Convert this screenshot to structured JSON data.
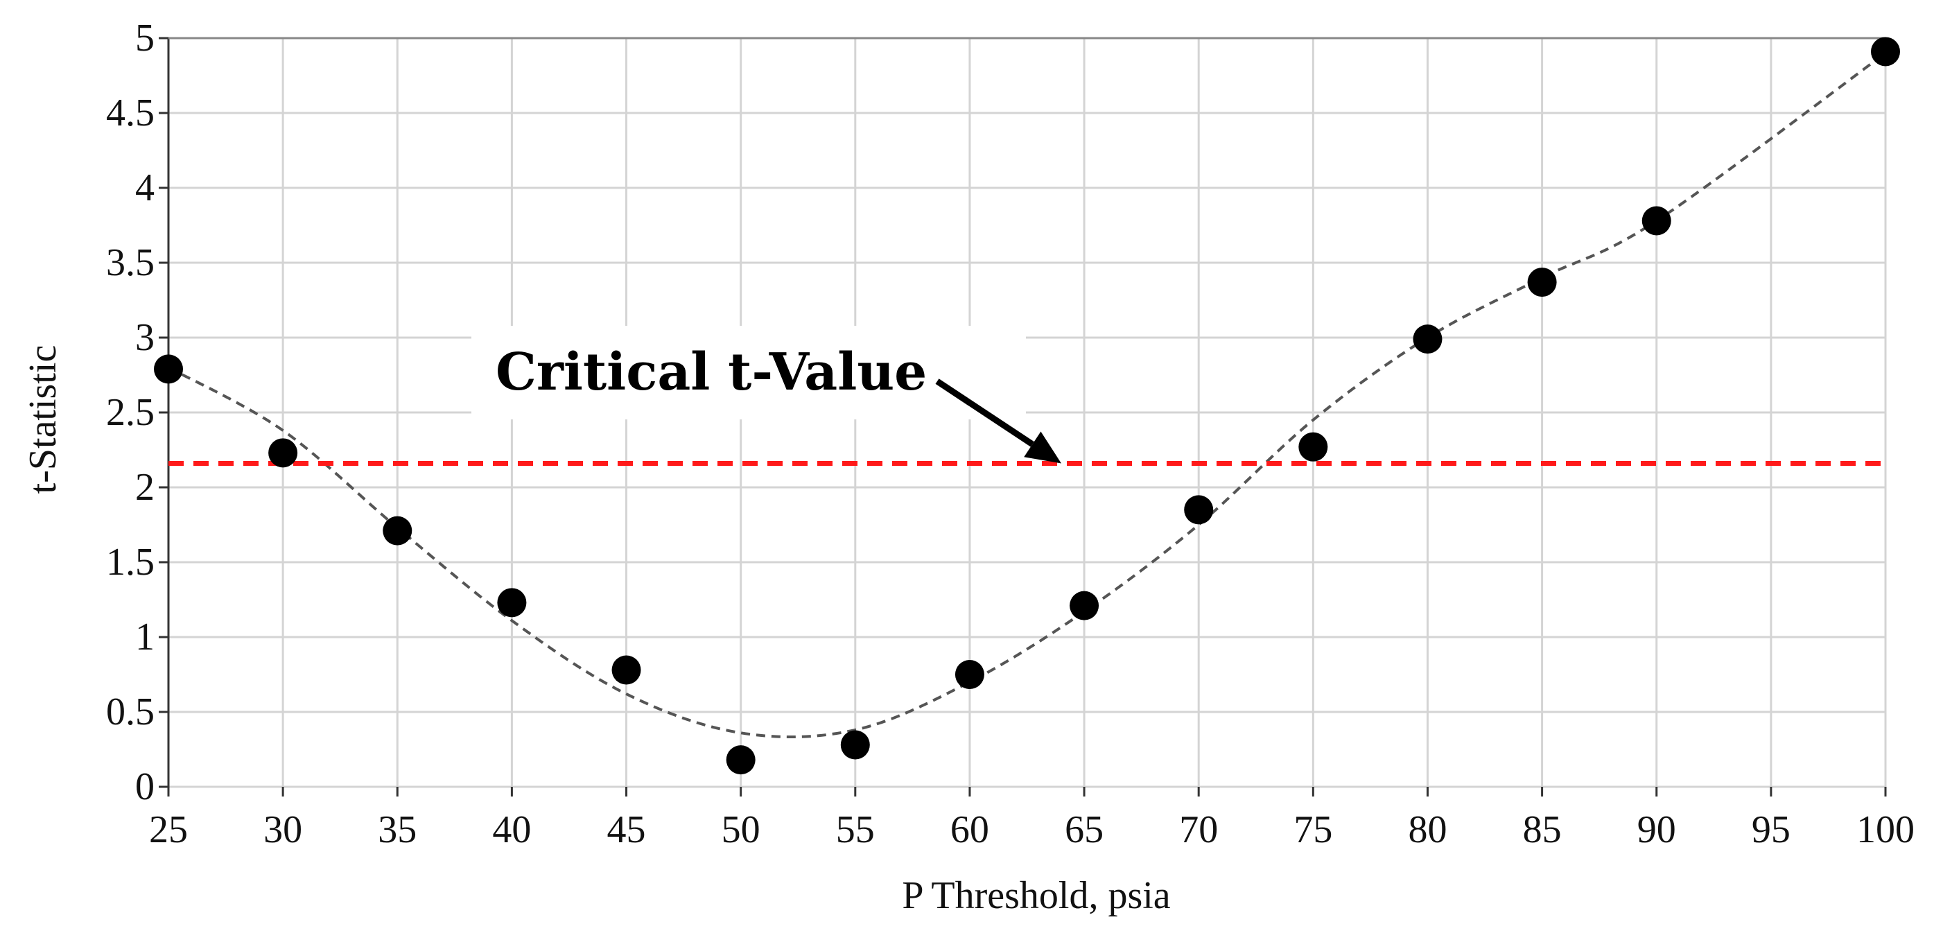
{
  "chart_data": {
    "type": "scatter",
    "title": "",
    "xlabel": "P Threshold, psia",
    "ylabel": "t-Statistic",
    "xlim": [
      25,
      100
    ],
    "ylim": [
      0,
      5
    ],
    "x_ticks": [
      25,
      30,
      35,
      40,
      45,
      50,
      55,
      60,
      65,
      70,
      75,
      80,
      85,
      90,
      95,
      100
    ],
    "y_ticks": [
      0,
      0.5,
      1,
      1.5,
      2,
      2.5,
      3,
      3.5,
      4,
      4.5,
      5
    ],
    "x_tick_labels": [
      "25",
      "30",
      "35",
      "40",
      "45",
      "50",
      "55",
      "60",
      "65",
      "70",
      "75",
      "80",
      "85",
      "90",
      "95",
      "100"
    ],
    "y_tick_labels": [
      "0",
      "0.5",
      "1",
      "1.5",
      "2",
      "2.5",
      "3",
      "3.5",
      "4",
      "4.5",
      "5"
    ],
    "grid": true,
    "series": [
      {
        "values_x": [
          25,
          30,
          35,
          40,
          45,
          50,
          55,
          60,
          65,
          70,
          75,
          80,
          85,
          90,
          100
        ],
        "values_y": [
          2.79,
          2.23,
          1.71,
          1.23,
          0.78,
          0.18,
          0.28,
          0.75,
          1.21,
          1.85,
          2.27,
          2.99,
          3.37,
          3.78,
          4.91
        ],
        "marker_color": "#000000"
      }
    ],
    "trend_line": {
      "style": "dashed",
      "color": "#555555",
      "x": [
        25,
        30,
        35,
        40,
        45,
        50,
        55,
        60,
        65,
        70,
        75,
        80,
        85,
        90,
        100
      ],
      "y": [
        2.8,
        2.38,
        1.73,
        1.11,
        0.62,
        0.36,
        0.38,
        0.7,
        1.17,
        1.75,
        2.45,
        3.0,
        3.4,
        3.78,
        4.9
      ]
    },
    "reference_line": {
      "y": 2.16,
      "color": "#ff1a1a",
      "style": "dashed"
    },
    "annotation": {
      "text": "Critical t-Value",
      "arrow_to": [
        64,
        2.16
      ]
    }
  }
}
